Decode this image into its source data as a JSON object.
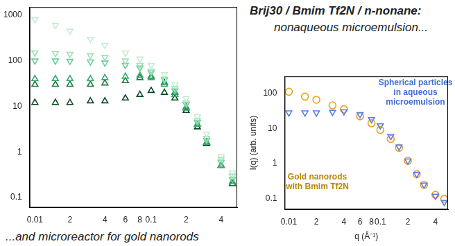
{
  "chart_data": [
    {
      "type": "scatter",
      "title": "Brij30 / Bmim Tf2N / n-nonane:",
      "subtitle": "nonaqueous microemulsion...",
      "annotations": [
        {
          "text": "...and microreactor for gold nanorods"
        }
      ],
      "log": true,
      "grid": false,
      "xlim": [
        0.009,
        0.55
      ],
      "xticks": [
        0.01,
        {
          "value": 0.02,
          "label": "2"
        },
        {
          "value": 0.04,
          "label": "4"
        },
        {
          "value": 0.06,
          "label": "6"
        },
        {
          "value": 0.08,
          "label": "8"
        },
        0.1,
        {
          "value": 0.2,
          "label": "2"
        },
        {
          "value": 0.4,
          "label": "4"
        }
      ],
      "ylim": [
        0.06,
        1500
      ],
      "yticks": [
        0.1,
        1,
        10,
        100,
        1000
      ],
      "x": [
        0.01,
        0.015,
        0.02,
        0.03,
        0.04,
        0.06,
        0.08,
        0.1,
        0.13,
        0.16,
        0.2,
        0.25,
        0.3,
        0.4,
        0.5
      ],
      "series": [
        {
          "color": "#c6ecd2",
          "marker": "triangle-down",
          "values": [
            800,
            600,
            450,
            300,
            220,
            150,
            110,
            80,
            50,
            30,
            15,
            6,
            2.5,
            0.8,
            0.35
          ]
        },
        {
          "color": "#9fe0b8",
          "marker": "triangle-down",
          "values": [
            150,
            145,
            140,
            130,
            120,
            100,
            80,
            60,
            40,
            25,
            12,
            5,
            2,
            0.7,
            0.3
          ]
        },
        {
          "color": "#6ccc98",
          "marker": "triangle-down",
          "values": [
            100,
            100,
            98,
            95,
            90,
            80,
            70,
            55,
            38,
            22,
            11,
            4.5,
            1.8,
            0.6,
            0.25
          ]
        },
        {
          "color": "#3aa96a",
          "marker": "triangle",
          "values": [
            40,
            40,
            40,
            40,
            42,
            45,
            47,
            42,
            30,
            18,
            9,
            4,
            1.6,
            0.5,
            0.22
          ]
        },
        {
          "color": "#1f7a45",
          "marker": "triangle",
          "values": [
            30,
            30,
            30,
            30,
            32,
            36,
            42,
            45,
            33,
            20,
            9.5,
            4,
            1.6,
            0.5,
            0.2
          ]
        },
        {
          "color": "#0c4a25",
          "marker": "triangle",
          "values": [
            12,
            12,
            12,
            13,
            13,
            15,
            18,
            22,
            20,
            15,
            8,
            3.5,
            1.5,
            0.5,
            0.2
          ]
        }
      ]
    },
    {
      "type": "scatter",
      "y_label": "I(q) (arb. units)",
      "x_label": "q (Å⁻¹)",
      "annotations": [
        {
          "text": "Spherical particles in aqueous microemulsion",
          "color": "#3f6fd8"
        },
        {
          "text": "Gold nanorods with Bmim Tf2N",
          "color": "#b8860b"
        }
      ],
      "log": true,
      "grid": false,
      "xlim": [
        0.009,
        0.55
      ],
      "xticks": [
        0.01,
        {
          "value": 0.02,
          "label": "2"
        },
        {
          "value": 0.04,
          "label": "4"
        },
        {
          "value": 0.06,
          "label": "6"
        },
        {
          "value": 0.08,
          "label": "8"
        },
        0.1,
        {
          "value": 0.2,
          "label": "2"
        },
        {
          "value": 0.4,
          "label": "4"
        }
      ],
      "ylim": [
        0.05,
        300
      ],
      "yticks": [
        0.1,
        1,
        10,
        100
      ],
      "x": [
        0.01,
        0.015,
        0.02,
        0.03,
        0.04,
        0.06,
        0.08,
        0.1,
        0.13,
        0.16,
        0.2,
        0.25,
        0.3,
        0.4,
        0.5
      ],
      "series": [
        {
          "color": "#5a7fe0",
          "marker": "triangle-down",
          "values": [
            28,
            28,
            28,
            29,
            30,
            25,
            18,
            12,
            6,
            3,
            1.2,
            0.5,
            0.25,
            0.12,
            0.08
          ]
        },
        {
          "color": "#f0a020",
          "marker": "circle",
          "values": [
            110,
            80,
            65,
            45,
            35,
            22,
            14,
            9,
            5,
            2.8,
            1.2,
            0.5,
            0.25,
            0.13,
            0.1
          ]
        }
      ]
    }
  ]
}
